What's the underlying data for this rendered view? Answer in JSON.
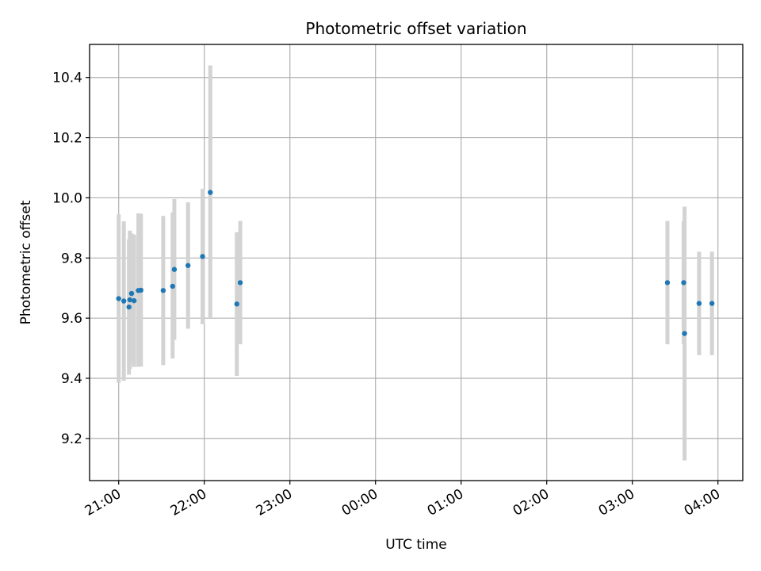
{
  "chart_data": {
    "type": "scatter",
    "title": "Photometric offset variation",
    "xlabel": "UTC time",
    "ylabel": "Photometric offset",
    "x_unit": "hours (UTC clock, continuing past midnight)",
    "xlim": [
      20.66,
      28.29
    ],
    "ylim": [
      9.06,
      10.51
    ],
    "x_ticks": [
      {
        "value": 21,
        "label": "21:00"
      },
      {
        "value": 22,
        "label": "22:00"
      },
      {
        "value": 23,
        "label": "23:00"
      },
      {
        "value": 24,
        "label": "00:00"
      },
      {
        "value": 25,
        "label": "01:00"
      },
      {
        "value": 26,
        "label": "02:00"
      },
      {
        "value": 27,
        "label": "03:00"
      },
      {
        "value": 28,
        "label": "04:00"
      }
    ],
    "y_ticks": [
      {
        "value": 9.2,
        "label": "9.2"
      },
      {
        "value": 9.4,
        "label": "9.4"
      },
      {
        "value": 9.6,
        "label": "9.6"
      },
      {
        "value": 9.8,
        "label": "9.8"
      },
      {
        "value": 10.0,
        "label": "10.0"
      },
      {
        "value": 10.2,
        "label": "10.2"
      },
      {
        "value": 10.4,
        "label": "10.4"
      }
    ],
    "grid": true,
    "point_color": "#1f77b4",
    "errorbar_color": "#d3d3d3",
    "points": [
      {
        "x": 21.0,
        "y": 9.665,
        "ylow": 9.385,
        "yhigh": 9.945
      },
      {
        "x": 21.06,
        "y": 9.657,
        "ylow": 9.392,
        "yhigh": 9.922
      },
      {
        "x": 21.12,
        "y": 9.637,
        "ylow": 9.412,
        "yhigh": 9.862
      },
      {
        "x": 21.13,
        "y": 9.661,
        "ylow": 9.431,
        "yhigh": 9.891
      },
      {
        "x": 21.15,
        "y": 9.682,
        "ylow": 9.452,
        "yhigh": 9.882
      },
      {
        "x": 21.18,
        "y": 9.658,
        "ylow": 9.438,
        "yhigh": 9.878
      },
      {
        "x": 21.23,
        "y": 9.692,
        "ylow": 9.438,
        "yhigh": 9.948
      },
      {
        "x": 21.26,
        "y": 9.693,
        "ylow": 9.439,
        "yhigh": 9.947
      },
      {
        "x": 21.52,
        "y": 9.692,
        "ylow": 9.444,
        "yhigh": 9.94
      },
      {
        "x": 21.63,
        "y": 9.706,
        "ylow": 9.466,
        "yhigh": 9.951
      },
      {
        "x": 21.65,
        "y": 9.762,
        "ylow": 9.528,
        "yhigh": 9.996
      },
      {
        "x": 21.81,
        "y": 9.775,
        "ylow": 9.565,
        "yhigh": 9.985
      },
      {
        "x": 21.98,
        "y": 9.805,
        "ylow": 9.58,
        "yhigh": 10.03
      },
      {
        "x": 22.07,
        "y": 10.018,
        "ylow": 9.6,
        "yhigh": 10.44
      },
      {
        "x": 22.38,
        "y": 9.647,
        "ylow": 9.408,
        "yhigh": 9.886
      },
      {
        "x": 22.42,
        "y": 9.718,
        "ylow": 9.513,
        "yhigh": 9.923
      },
      {
        "x": 27.41,
        "y": 9.718,
        "ylow": 9.513,
        "yhigh": 9.923
      },
      {
        "x": 27.6,
        "y": 9.718,
        "ylow": 9.513,
        "yhigh": 9.923
      },
      {
        "x": 27.61,
        "y": 9.549,
        "ylow": 9.127,
        "yhigh": 9.971
      },
      {
        "x": 27.78,
        "y": 9.649,
        "ylow": 9.477,
        "yhigh": 9.821
      },
      {
        "x": 27.93,
        "y": 9.649,
        "ylow": 9.477,
        "yhigh": 9.821
      }
    ]
  }
}
